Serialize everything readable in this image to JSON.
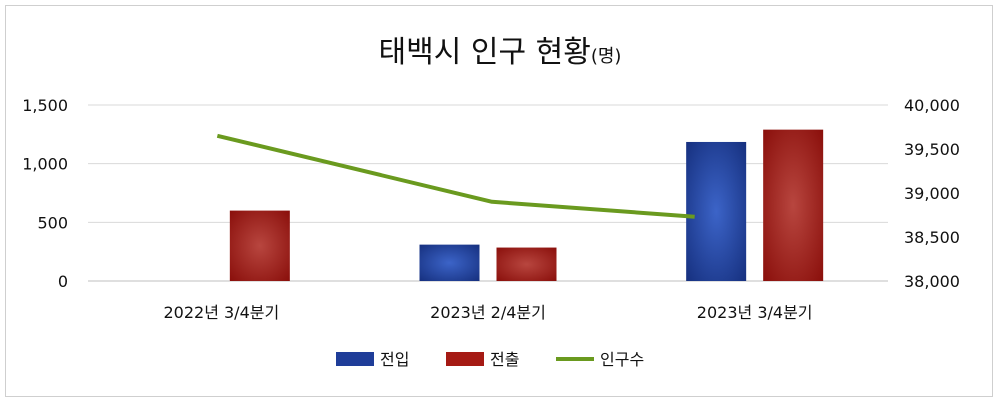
{
  "chart_data": {
    "type": "bar",
    "title": "태백시 인구 현황",
    "title_unit": "(명)",
    "categories": [
      "2022년 3/4분기",
      "2023년 2/4분기",
      "2023년 3/4분기"
    ],
    "y_left": {
      "min": 0,
      "max": 1500,
      "ticks": [
        "0",
        "500",
        "1,000",
        "1,500"
      ],
      "tick_values": [
        0,
        500,
        1000,
        1500
      ]
    },
    "y_right": {
      "min": 38000,
      "max": 40000,
      "ticks": [
        "38,000",
        "38,500",
        "39,000",
        "39,500",
        "40,000"
      ],
      "tick_values": [
        38000,
        38500,
        39000,
        39500,
        40000
      ]
    },
    "grid": true,
    "legend_position": "bottom",
    "series": [
      {
        "name": "전입",
        "type": "bar",
        "axis": "left",
        "color": "#1f3d99",
        "values": [
          0,
          310,
          1185
        ]
      },
      {
        "name": "전출",
        "type": "bar",
        "axis": "left",
        "color": "#a51a14",
        "values": [
          600,
          285,
          1290
        ]
      },
      {
        "name": "인구수",
        "type": "line",
        "axis": "right",
        "color": "#6a9a1f",
        "values": [
          39650,
          38900,
          38730
        ]
      }
    ]
  }
}
